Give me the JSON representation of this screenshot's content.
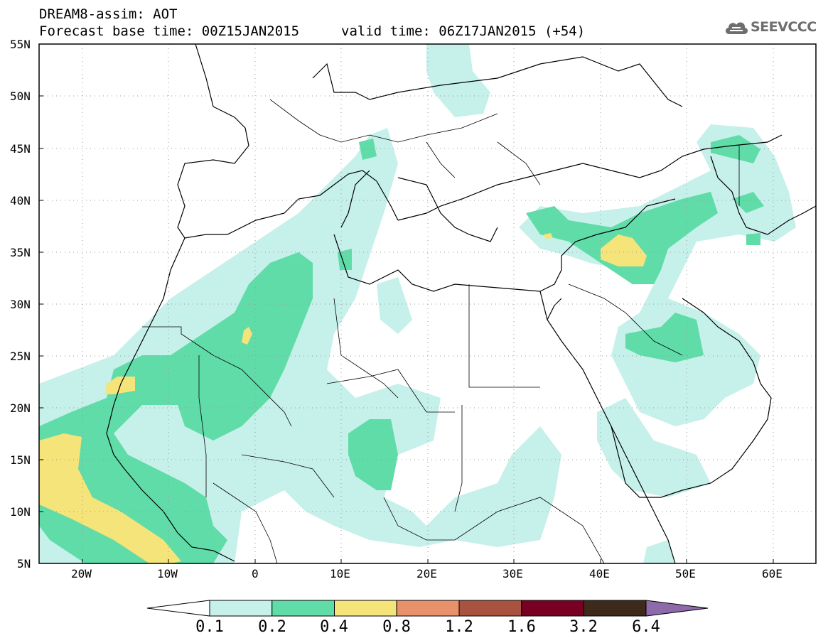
{
  "header": {
    "title": "DREAM8-assim: AOT",
    "base_time": "Forecast base time: 00Z15JAN2015",
    "valid_time": "valid time: 06Z17JAN2015 (+54)"
  },
  "logo": {
    "text": "SEEVCCC",
    "icon": "cloud-icon"
  },
  "map": {
    "type": "filled-contour",
    "lat_labels": [
      "55N",
      "50N",
      "45N",
      "40N",
      "35N",
      "30N",
      "25N",
      "20N",
      "15N",
      "10N",
      "5N"
    ],
    "lon_labels": [
      "20W",
      "10W",
      "0",
      "10E",
      "20E",
      "30E",
      "40E",
      "50E",
      "60E"
    ],
    "extent": {
      "lon": [
        -25,
        65
      ],
      "lat": [
        5,
        55
      ]
    },
    "gridlines": "dotted"
  },
  "colorbar": {
    "levels": [
      "0.1",
      "0.2",
      "0.4",
      "0.8",
      "1.2",
      "1.6",
      "3.2",
      "6.4"
    ],
    "colors": [
      "#ffffff",
      "#c6f0ea",
      "#60dca8",
      "#f4e47a",
      "#e8916a",
      "#a9523f",
      "#780022",
      "#3d2a1a",
      "#8e6aaa"
    ]
  }
}
